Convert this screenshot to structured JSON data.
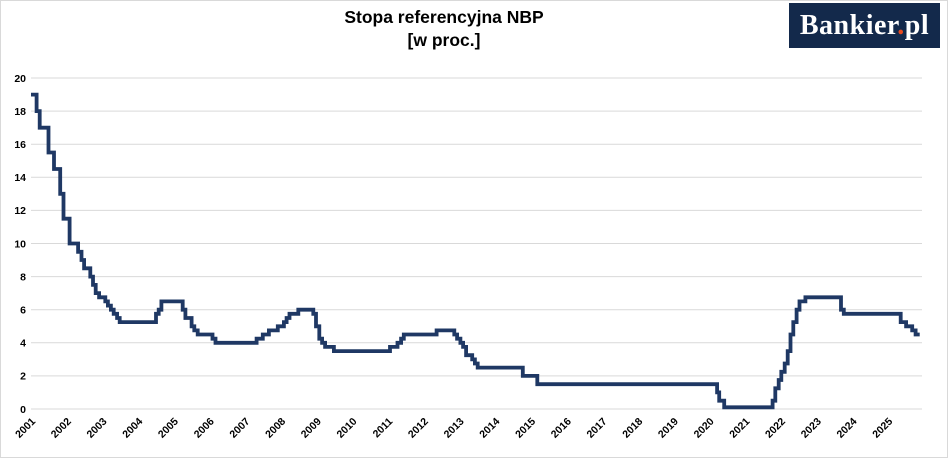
{
  "header": {
    "title": "Stopa referencyjna NBP",
    "subtitle": "[w proc.]"
  },
  "logo": {
    "main": "Bankier",
    "dot": ".",
    "tld": "pl"
  },
  "colors": {
    "line": "#1F3864",
    "grid": "#D9D9D9",
    "axis_text": "#000000",
    "border": "#D9D9D9",
    "background": "#FFFFFF",
    "logo_bg": "#13294B",
    "logo_text": "#FFFFFF",
    "logo_dot": "#E8491E"
  },
  "chart_data": {
    "type": "line",
    "step": true,
    "title": "Stopa referencyjna NBP",
    "subtitle": "[w proc.]",
    "xlabel": "",
    "ylabel": "",
    "ylim": [
      0,
      20
    ],
    "ytick_step": 2,
    "grid": "horizontal",
    "legend": "none",
    "x_years": [
      2001,
      2002,
      2003,
      2004,
      2005,
      2006,
      2007,
      2008,
      2009,
      2010,
      2011,
      2012,
      2013,
      2014,
      2015,
      2016,
      2017,
      2018,
      2019,
      2020,
      2021,
      2022,
      2023,
      2024,
      2025
    ],
    "x_end": "2025-11-20",
    "series": [
      {
        "name": "Stopa referencyjna NBP [w proc.]",
        "points": [
          [
            "2001-01-01",
            19.0
          ],
          [
            "2001-02-28",
            18.0
          ],
          [
            "2001-03-29",
            17.0
          ],
          [
            "2001-06-28",
            15.5
          ],
          [
            "2001-08-23",
            14.5
          ],
          [
            "2001-10-26",
            13.0
          ],
          [
            "2001-11-29",
            11.5
          ],
          [
            "2002-01-31",
            10.0
          ],
          [
            "2002-04-26",
            9.5
          ],
          [
            "2002-05-30",
            9.0
          ],
          [
            "2002-06-27",
            8.5
          ],
          [
            "2002-08-29",
            8.0
          ],
          [
            "2002-09-26",
            7.5
          ],
          [
            "2002-10-24",
            7.0
          ],
          [
            "2002-11-28",
            6.75
          ],
          [
            "2003-01-30",
            6.5
          ],
          [
            "2003-02-27",
            6.25
          ],
          [
            "2003-03-27",
            6.0
          ],
          [
            "2003-04-25",
            5.75
          ],
          [
            "2003-05-29",
            5.5
          ],
          [
            "2003-06-26",
            5.25
          ],
          [
            "2004-07-01",
            5.75
          ],
          [
            "2004-07-29",
            6.0
          ],
          [
            "2004-08-26",
            6.5
          ],
          [
            "2005-03-31",
            6.0
          ],
          [
            "2005-04-28",
            5.5
          ],
          [
            "2005-06-30",
            5.0
          ],
          [
            "2005-07-28",
            4.75
          ],
          [
            "2005-09-01",
            4.5
          ],
          [
            "2006-02-01",
            4.25
          ],
          [
            "2006-03-01",
            4.0
          ],
          [
            "2007-04-26",
            4.25
          ],
          [
            "2007-06-28",
            4.5
          ],
          [
            "2007-08-30",
            4.75
          ],
          [
            "2007-11-29",
            5.0
          ],
          [
            "2008-01-31",
            5.25
          ],
          [
            "2008-02-28",
            5.5
          ],
          [
            "2008-03-27",
            5.75
          ],
          [
            "2008-06-26",
            6.0
          ],
          [
            "2008-11-27",
            5.75
          ],
          [
            "2008-12-24",
            5.0
          ],
          [
            "2009-01-28",
            4.25
          ],
          [
            "2009-02-26",
            4.0
          ],
          [
            "2009-03-26",
            3.75
          ],
          [
            "2009-06-25",
            3.5
          ],
          [
            "2011-01-20",
            3.75
          ],
          [
            "2011-04-06",
            4.0
          ],
          [
            "2011-05-12",
            4.25
          ],
          [
            "2011-06-09",
            4.5
          ],
          [
            "2012-05-10",
            4.75
          ],
          [
            "2012-11-08",
            4.5
          ],
          [
            "2012-12-06",
            4.25
          ],
          [
            "2013-01-10",
            4.0
          ],
          [
            "2013-02-07",
            3.75
          ],
          [
            "2013-03-07",
            3.25
          ],
          [
            "2013-05-09",
            3.0
          ],
          [
            "2013-06-06",
            2.75
          ],
          [
            "2013-07-04",
            2.5
          ],
          [
            "2014-10-09",
            2.0
          ],
          [
            "2015-03-05",
            1.5
          ],
          [
            "2020-03-18",
            1.0
          ],
          [
            "2020-04-09",
            0.5
          ],
          [
            "2020-05-29",
            0.1
          ],
          [
            "2021-10-07",
            0.5
          ],
          [
            "2021-11-04",
            1.25
          ],
          [
            "2021-12-09",
            1.75
          ],
          [
            "2022-01-05",
            2.25
          ],
          [
            "2022-02-09",
            2.75
          ],
          [
            "2022-03-09",
            3.5
          ],
          [
            "2022-04-07",
            4.5
          ],
          [
            "2022-05-06",
            5.25
          ],
          [
            "2022-06-09",
            6.0
          ],
          [
            "2022-07-08",
            6.5
          ],
          [
            "2022-09-08",
            6.75
          ],
          [
            "2023-09-07",
            6.0
          ],
          [
            "2023-10-05",
            5.75
          ],
          [
            "2025-05-08",
            5.25
          ],
          [
            "2025-07-03",
            5.0
          ],
          [
            "2025-09-04",
            4.75
          ],
          [
            "2025-10-09",
            4.5
          ]
        ]
      }
    ]
  }
}
